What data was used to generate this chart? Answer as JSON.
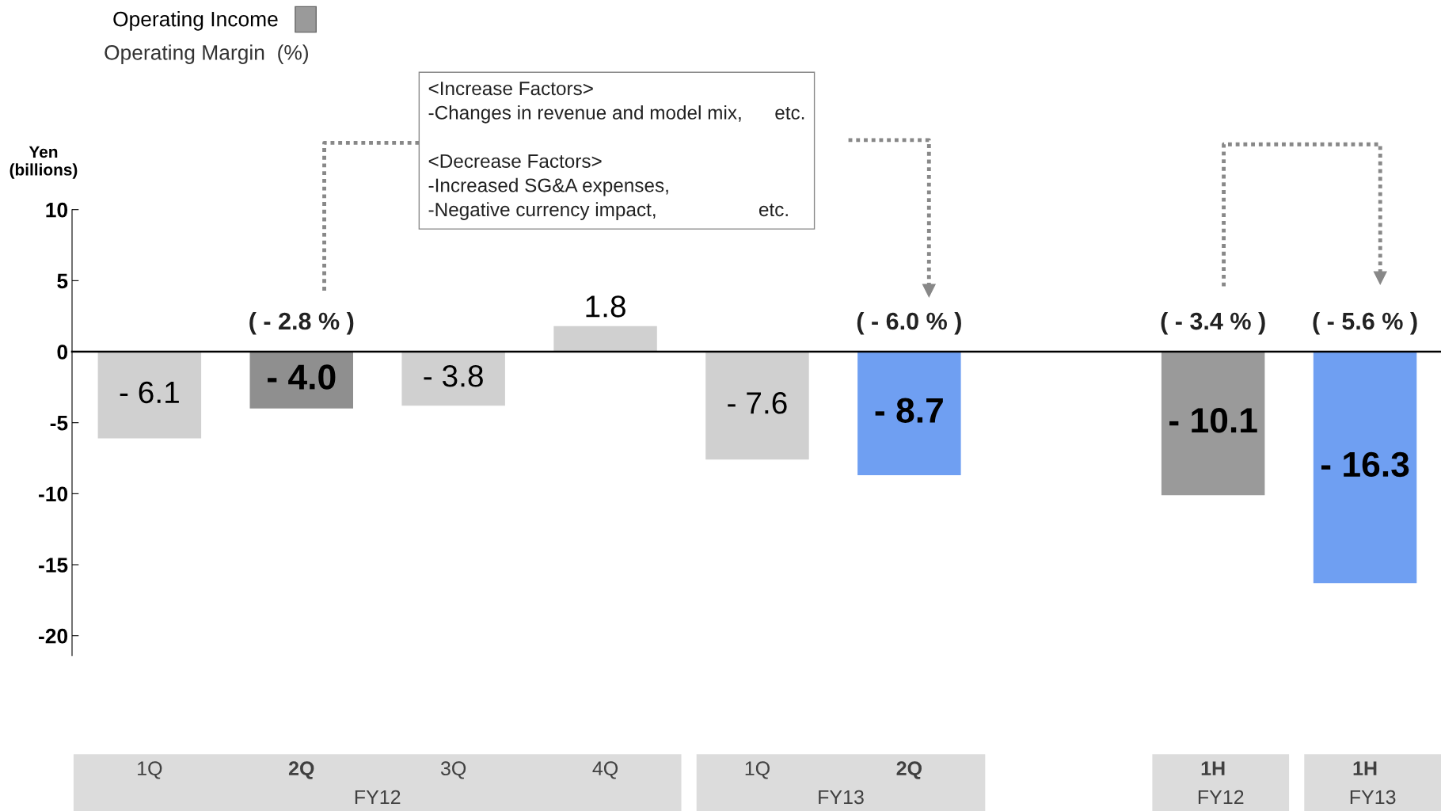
{
  "chart_data": {
    "type": "bar",
    "ylabel": "Yen\n(billions)",
    "categories": [
      "1Q",
      "2Q",
      "3Q",
      "4Q",
      "1Q",
      "2Q",
      null,
      "1H",
      "1H"
    ],
    "series": [
      {
        "name": "Operating Income",
        "color": "#9a9a9a",
        "values": [
          -6.1,
          -4.0,
          -3.8,
          1.8,
          -7.6,
          -8.7,
          null,
          -10.1,
          -16.3
        ],
        "colors": [
          "#d0d0d0",
          "#8f8f8f",
          "#d0d0d0",
          "#d0d0d0",
          "#d0d0d0",
          "#6f9ff2",
          null,
          "#9a9a9a",
          "#6f9ff2"
        ],
        "value_labels": [
          "- 6.1",
          "- 4.0",
          "- 3.8",
          "1.8",
          "- 7.6",
          "- 8.7",
          null,
          "- 10.1",
          "- 16.3"
        ]
      }
    ],
    "ylim": [
      -21.4,
      10
    ],
    "yticks": [
      10,
      5,
      0,
      -5,
      -10,
      -15,
      -20
    ],
    "legend": "top left",
    "annotations": [
      "Operating Margin  (%)",
      "( - 2.8 % )",
      "( - 6.0 % )",
      "( - 3.4 % )",
      "( - 5.6 % )",
      "FY12",
      "FY13",
      "FY12",
      "FY13",
      "<Increase Factors>\n-Changes in revenue and model mix,      etc.\n\n<Decrease Factors>\n-Increased SG&A expenses,\n-Negative currency impact,                   etc."
    ]
  }
}
